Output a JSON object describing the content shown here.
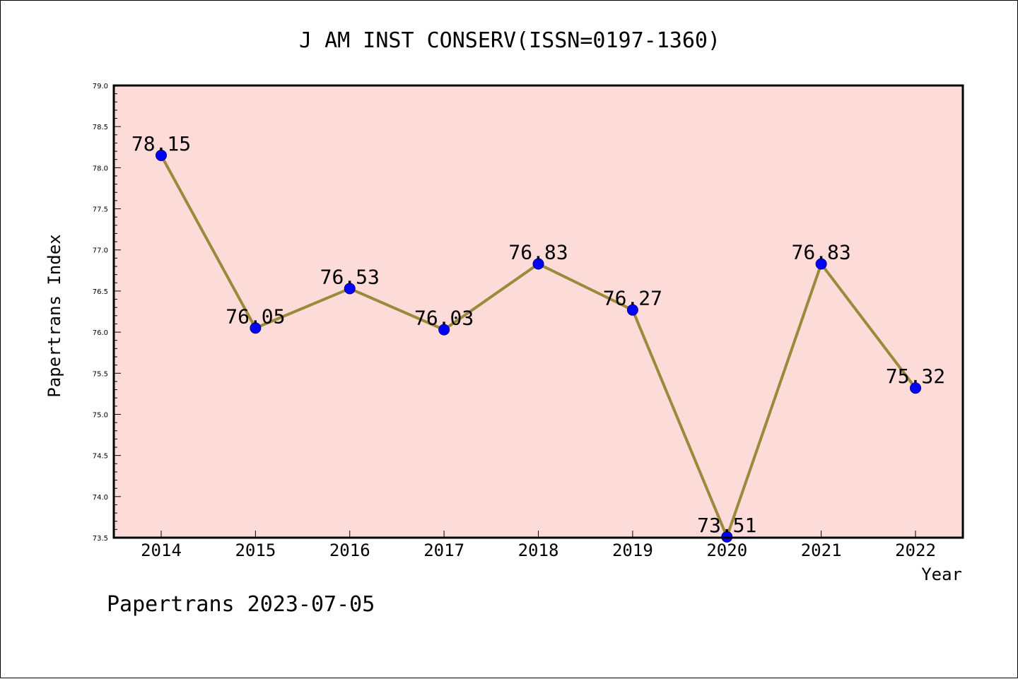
{
  "chart_data": {
    "type": "line",
    "title": "J AM INST CONSERV(ISSN=0197-1360)",
    "xlabel": "Year",
    "ylabel": "Papertrans Index",
    "categories": [
      "2014",
      "2015",
      "2016",
      "2017",
      "2018",
      "2019",
      "2020",
      "2021",
      "2022"
    ],
    "series": [
      {
        "values": [
          78.15,
          76.05,
          76.53,
          76.03,
          76.83,
          76.27,
          73.51,
          76.83,
          75.32
        ],
        "data_labels": [
          "78.15",
          "76.05",
          "76.53",
          "76.03",
          "76.83",
          "76.27",
          "73.51",
          "76.83",
          "75.32"
        ]
      }
    ],
    "ylim": [
      73.5,
      79.0
    ],
    "yticks": [
      "73.5",
      "74.0",
      "74.5",
      "75.0",
      "75.5",
      "76.0",
      "76.5",
      "77.0",
      "77.5",
      "78.0",
      "78.5",
      "79.0"
    ],
    "grid": false,
    "legend": "none",
    "colors": {
      "plot_background": "#fddbd8",
      "line": "#9b8a3c",
      "marker": "#0000ff",
      "marker_edge": "#00008b",
      "axis": "#000000"
    }
  },
  "footer": "Papertrans 2023-07-05"
}
